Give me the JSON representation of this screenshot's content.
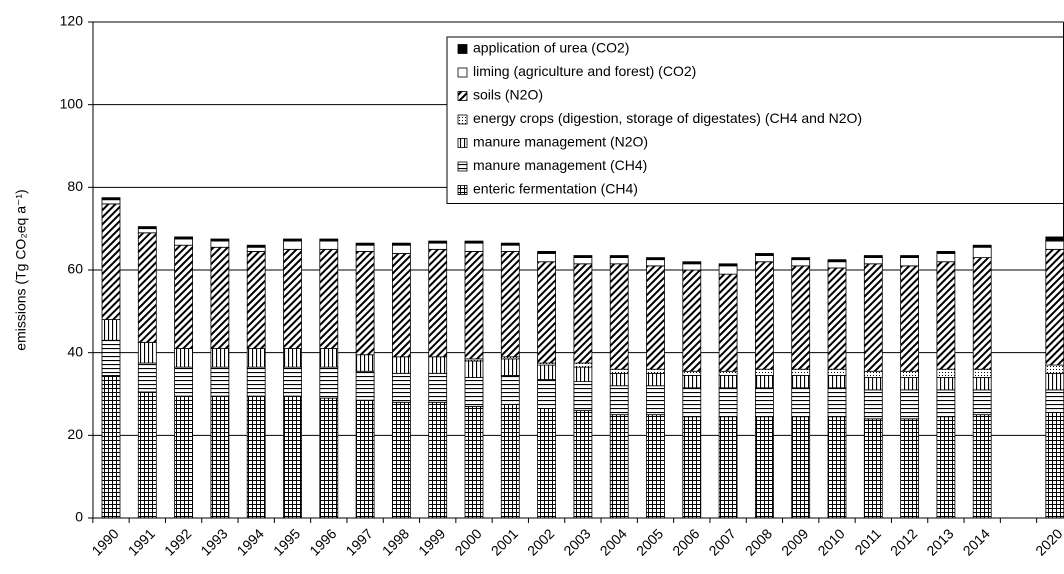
{
  "chart_data": {
    "type": "stacked_bar",
    "ylabel": "emissions (Tg CO₂eq a⁻¹)",
    "categories": [
      "1990",
      "1991",
      "1992",
      "1993",
      "1994",
      "1995",
      "1996",
      "1997",
      "1998",
      "1999",
      "2000",
      "2001",
      "2002",
      "2003",
      "2004",
      "2005",
      "2006",
      "2007",
      "2008",
      "2009",
      "2010",
      "2011",
      "2012",
      "2013",
      "2014",
      null,
      "2020"
    ],
    "series": [
      {
        "name": "enteric fermentation (CH4)",
        "pattern": "grid",
        "color": "#000000",
        "values": [
          34.5,
          30.5,
          29.5,
          29.5,
          29.5,
          29.5,
          29,
          28.5,
          28,
          28,
          27,
          27.5,
          26.5,
          26,
          25,
          25,
          24.5,
          24.5,
          24.5,
          24.5,
          24.5,
          24,
          24,
          24.5,
          25,
          null,
          25.5
        ]
      },
      {
        "name": "manure management (CH4)",
        "pattern": "hlines",
        "color": "#000000",
        "values": [
          8.5,
          7,
          7,
          7,
          7,
          7,
          7.5,
          7,
          7,
          7,
          7,
          7,
          7,
          7,
          7,
          7,
          7,
          7,
          7,
          7,
          7,
          7,
          7,
          6.5,
          6,
          null,
          5.5
        ]
      },
      {
        "name": "manure management (N2O)",
        "pattern": "vlines",
        "color": "#000000",
        "values": [
          5,
          5,
          4.5,
          4.5,
          4.5,
          4.5,
          4.5,
          4,
          4,
          4,
          4,
          4,
          3.5,
          3.5,
          3,
          3,
          3,
          3,
          3,
          3,
          3,
          3,
          3,
          3,
          3,
          null,
          4
        ]
      },
      {
        "name": "energy crops (digestion, storage of digestates) (CH4 and N2O)",
        "pattern": "dots",
        "color": "#000000",
        "values": [
          0,
          0,
          0,
          0,
          0,
          0,
          0,
          0,
          0,
          0,
          0.5,
          0.5,
          0.5,
          1,
          1,
          1,
          1,
          1,
          1.5,
          1.5,
          1.5,
          1.5,
          1.5,
          2,
          2,
          null,
          2
        ]
      },
      {
        "name": "soils (N2O)",
        "pattern": "hatch",
        "color": "#000000",
        "values": [
          28,
          26.5,
          25,
          24.5,
          23.5,
          24,
          24,
          25,
          25,
          26,
          26,
          25.5,
          24.5,
          24,
          25.5,
          25,
          24.5,
          23.5,
          26,
          25,
          24.5,
          26,
          25.5,
          26,
          27,
          null,
          28
        ]
      },
      {
        "name": "liming (agriculture and forest) (CO2)",
        "pattern": "white",
        "color": "#ffffff",
        "values": [
          1,
          1,
          1.5,
          1.5,
          1,
          2,
          2,
          1.5,
          2,
          1.5,
          2,
          1.5,
          2,
          1.5,
          1.5,
          1.5,
          1.5,
          2,
          1.5,
          1.5,
          1.5,
          1.5,
          2,
          2,
          2.5,
          null,
          2
        ]
      },
      {
        "name": "application of urea (CO2)",
        "pattern": "solid",
        "color": "#000000",
        "values": [
          0.5,
          0.5,
          0.5,
          0.5,
          0.5,
          0.5,
          0.5,
          0.5,
          0.5,
          0.5,
          0.5,
          0.5,
          0.5,
          0.5,
          0.5,
          0.5,
          0.5,
          0.5,
          0.5,
          0.5,
          0.5,
          0.5,
          0.5,
          0.5,
          0.5,
          null,
          1
        ]
      }
    ],
    "ylim": [
      0,
      120
    ],
    "yticks": [
      0,
      20,
      40,
      60,
      80,
      100,
      120
    ],
    "grid": true,
    "legend": "top-right"
  }
}
